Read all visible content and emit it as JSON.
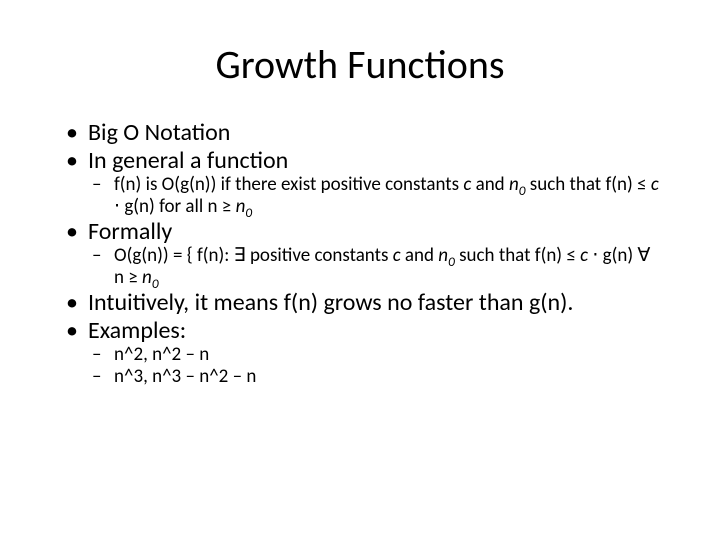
{
  "title": "Growth Functions",
  "bullets": {
    "b1": "Big O Notation",
    "b2": "In general a function",
    "b2_sub1_a": "f(n) is O(g(n)) if there exist positive constants ",
    "b2_sub1_c": "c",
    "b2_sub1_b": " and ",
    "b2_sub1_n0": "n",
    "b2_sub1_zero": "0",
    "b2_sub1_tail_a": " such that f(n) ≤ ",
    "b2_sub1_tail_c": "c",
    "b2_sub1_tail_b": " ⋅ g(n) for all n ≥ ",
    "b2_sub1_tail_n0": "n",
    "b2_sub1_tail_zero": "0",
    "b3": "Formally",
    "b3_sub1_a": "O(g(n)) = { f(n): ∃ positive constants ",
    "b3_sub1_c": "c",
    "b3_sub1_b": " and ",
    "b3_sub1_n0": "n",
    "b3_sub1_zero": "0",
    "b3_sub1_mid_a": " such that f(n) ≤ ",
    "b3_sub1_mid_c": "c",
    "b3_sub1_mid_b": " ⋅ g(n) ∀ n ≥ ",
    "b3_sub1_mid_n0": "n",
    "b3_sub1_mid_zero": "0",
    "b4": "Intuitively, it means f(n) grows no faster than g(n).",
    "b5": "Examples:",
    "b5_sub1": "n^2, n^2 – n",
    "b5_sub2": "n^3, n^3 – n^2 – n"
  },
  "colors": {
    "text": "#000000",
    "background": "#ffffff"
  },
  "typography": {
    "title_fontsize": 40,
    "body_fontsize": 24,
    "sub_fontsize": 19,
    "font_family": "Calibri"
  }
}
